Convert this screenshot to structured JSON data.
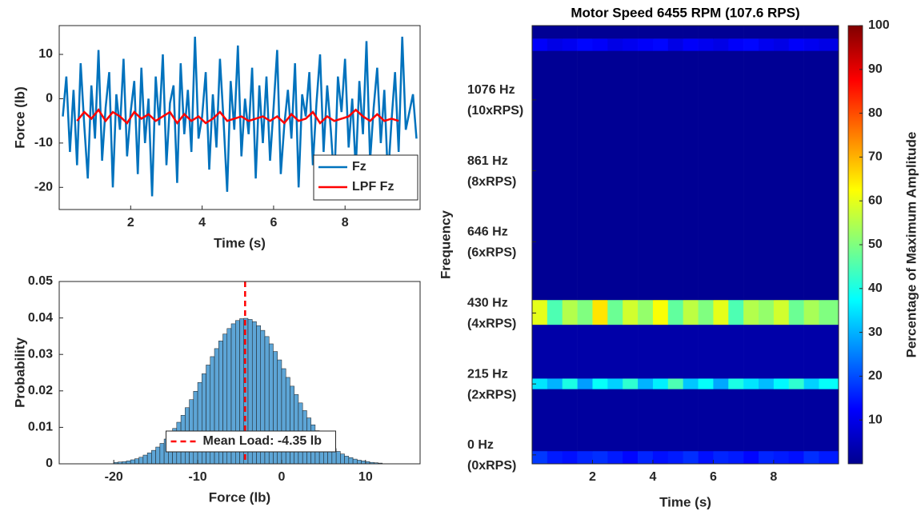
{
  "chart_data": [
    {
      "type": "line",
      "xlabel": "Time (s)",
      "ylabel": "Force (lb)",
      "xlim": [
        0,
        10.1
      ],
      "ylim": [
        -25,
        16.5
      ],
      "xticks": [
        2,
        4,
        6,
        8
      ],
      "yticks": [
        -20,
        -10,
        0,
        10
      ],
      "legend": "lower right",
      "series": [
        {
          "name": "Fz",
          "color": "#0072bd",
          "x": [
            0.1,
            0.2,
            0.3,
            0.4,
            0.5,
            0.6,
            0.7,
            0.8,
            0.9,
            1.0,
            1.1,
            1.2,
            1.3,
            1.4,
            1.5,
            1.6,
            1.7,
            1.8,
            1.9,
            2.0,
            2.1,
            2.2,
            2.3,
            2.4,
            2.5,
            2.6,
            2.7,
            2.8,
            2.9,
            3.0,
            3.1,
            3.2,
            3.3,
            3.4,
            3.5,
            3.6,
            3.7,
            3.8,
            3.9,
            4.0,
            4.1,
            4.2,
            4.3,
            4.4,
            4.5,
            4.6,
            4.7,
            4.8,
            4.9,
            5.0,
            5.1,
            5.2,
            5.3,
            5.4,
            5.5,
            5.6,
            5.7,
            5.8,
            5.9,
            6.0,
            6.1,
            6.2,
            6.3,
            6.4,
            6.5,
            6.6,
            6.7,
            6.8,
            6.9,
            7.0,
            7.1,
            7.2,
            7.3,
            7.4,
            7.5,
            7.6,
            7.7,
            7.8,
            7.9,
            8.0,
            8.1,
            8.2,
            8.3,
            8.4,
            8.5,
            8.6,
            8.7,
            8.8,
            8.9,
            9.0,
            9.1,
            9.2,
            9.3,
            9.4,
            9.5,
            9.6,
            9.7,
            9.8,
            9.9,
            10.0
          ],
          "values": [
            -4,
            5,
            -12,
            2,
            -15,
            8,
            -6,
            -18,
            3,
            -9,
            11,
            -14,
            -2,
            6,
            -20,
            1,
            -7,
            9,
            -13,
            -3,
            4,
            -17,
            7,
            -10,
            0,
            -22,
            5,
            -6,
            10,
            -15,
            -1,
            3,
            -19,
            8,
            -8,
            2,
            -12,
            14,
            -9,
            -4,
            6,
            -16,
            1,
            -11,
            9,
            -5,
            -21,
            4,
            -7,
            12,
            -13,
            0,
            -8,
            7,
            -18,
            3,
            -10,
            5,
            -14,
            -2,
            11,
            -17,
            -6,
            2,
            -9,
            8,
            -20,
            1,
            -4,
            6,
            -15,
            -1,
            10,
            -12,
            3,
            -7,
            -19,
            5,
            -3,
            9,
            -11,
            0,
            -16,
            4,
            -8,
            13,
            -14,
            -2,
            7,
            -10,
            2,
            -18,
            -5,
            6,
            -12,
            14,
            -7,
            -3,
            1,
            -9
          ]
        },
        {
          "name": "LPF Fz",
          "color": "#ff0000",
          "x": [
            0.5,
            0.7,
            0.9,
            1.1,
            1.3,
            1.5,
            1.7,
            1.9,
            2.1,
            2.3,
            2.5,
            2.7,
            2.9,
            3.1,
            3.3,
            3.5,
            3.7,
            3.9,
            4.1,
            4.3,
            4.5,
            4.7,
            4.9,
            5.1,
            5.3,
            5.5,
            5.7,
            5.9,
            6.1,
            6.3,
            6.5,
            6.7,
            6.9,
            7.1,
            7.3,
            7.5,
            7.7,
            7.9,
            8.1,
            8.3,
            8.5,
            8.7,
            8.9,
            9.1,
            9.3,
            9.5
          ],
          "values": [
            -5,
            -3,
            -4.5,
            -2.5,
            -5,
            -3,
            -4,
            -5.5,
            -3,
            -4.5,
            -3.5,
            -5,
            -4,
            -3,
            -5.5,
            -3.5,
            -5,
            -4,
            -5.5,
            -4.5,
            -3,
            -5,
            -4.5,
            -4,
            -5,
            -4.5,
            -4,
            -5,
            -4,
            -5.5,
            -3.5,
            -5,
            -4.5,
            -3,
            -5.5,
            -4,
            -5,
            -4.5,
            -4,
            -2.5,
            -4,
            -5,
            -3.5,
            -5,
            -4.5,
            -5
          ]
        }
      ]
    },
    {
      "type": "histogram",
      "xlabel": "Force (lb)",
      "ylabel": "Probability",
      "color": "#5da5d6",
      "xlim": [
        -26.5,
        16.5
      ],
      "ylim": [
        0,
        0.05
      ],
      "xticks": [
        -20,
        -10,
        0,
        10
      ],
      "yticks": [
        0,
        0.01,
        0.02,
        0.03,
        0.04,
        0.05
      ],
      "bins": [
        -20,
        -19.5,
        -19,
        -18.5,
        -18,
        -17.5,
        -17,
        -16.5,
        -16,
        -15.5,
        -15,
        -14.5,
        -14,
        -13.5,
        -13,
        -12.5,
        -12,
        -11.5,
        -11,
        -10.5,
        -10,
        -9.5,
        -9,
        -8.5,
        -8,
        -7.5,
        -7,
        -6.5,
        -6,
        -5.5,
        -5,
        -4.5,
        -4,
        -3.5,
        -3,
        -2.5,
        -2,
        -1.5,
        -1,
        -0.5,
        0,
        0.5,
        1,
        1.5,
        2,
        2.5,
        3,
        3.5,
        4,
        4.5,
        5,
        5.5,
        6,
        6.5,
        7,
        7.5,
        8,
        8.5,
        9,
        9.5,
        10,
        10.5,
        11,
        11.5,
        12
      ],
      "values": [
        0.0004,
        0.0005,
        0.0006,
        0.0008,
        0.0011,
        0.0014,
        0.0018,
        0.0024,
        0.003,
        0.0037,
        0.0046,
        0.0056,
        0.0068,
        0.0082,
        0.0097,
        0.0114,
        0.0133,
        0.0154,
        0.0176,
        0.0199,
        0.0223,
        0.0247,
        0.0271,
        0.0294,
        0.0316,
        0.0337,
        0.0356,
        0.0371,
        0.0384,
        0.0393,
        0.0398,
        0.0399,
        0.0396,
        0.039,
        0.0379,
        0.0366,
        0.0349,
        0.0329,
        0.0308,
        0.0285,
        0.0261,
        0.0237,
        0.0213,
        0.019,
        0.0167,
        0.0146,
        0.0126,
        0.0107,
        0.0091,
        0.0076,
        0.0063,
        0.0052,
        0.0042,
        0.0034,
        0.0027,
        0.0021,
        0.0017,
        0.0013,
        0.001,
        0.0008,
        0.0006,
        0.0004,
        0.0003,
        0.0002
      ],
      "mean_line": {
        "value": -4.35,
        "label": "Mean Load: -4.35 lb",
        "color": "#ff0000"
      },
      "legend": "lower center"
    },
    {
      "type": "heatmap",
      "title": "Motor Speed 6455 RPM (107.6 RPS)",
      "xlabel": "Time (s)",
      "ylabel": "Frequency",
      "colorbar_label": "Percentage of Maximum Amplitude",
      "colormap": "jet",
      "xlim": [
        0,
        10.15
      ],
      "ylim": [
        -27,
        1301
      ],
      "xticks": [
        2,
        4,
        6,
        8
      ],
      "yticks": [
        {
          "value": 0,
          "label": [
            "0 Hz",
            "(0xRPS)"
          ]
        },
        {
          "value": 215,
          "label": [
            "215 Hz",
            "(2xRPS)"
          ]
        },
        {
          "value": 430,
          "label": [
            "430 Hz",
            "(4xRPS)"
          ]
        },
        {
          "value": 646,
          "label": [
            "646 Hz",
            "(6xRPS)"
          ]
        },
        {
          "value": 861,
          "label": [
            "861 Hz",
            "(8xRPS)"
          ]
        },
        {
          "value": 1076,
          "label": [
            "1076 Hz",
            "(10xRPS)"
          ]
        }
      ],
      "clim": [
        0,
        100
      ],
      "cticks": [
        10,
        20,
        30,
        40,
        50,
        60,
        70,
        80,
        90,
        100
      ],
      "x_bins": [
        0,
        0.5,
        1,
        1.5,
        2,
        2.5,
        3,
        3.5,
        4,
        4.5,
        5,
        5.5,
        6,
        6.5,
        7,
        7.5,
        8,
        8.5,
        9,
        9.5,
        10.15
      ],
      "y_bins": [
        -27,
        12,
        200,
        232,
        395,
        470,
        1225,
        1262,
        1301
      ],
      "z": [
        [
          18,
          15,
          14,
          16,
          17,
          15,
          13,
          16,
          14,
          15,
          17,
          14,
          16,
          15,
          13,
          16,
          15,
          14,
          17,
          15
        ],
        [
          3,
          3,
          3,
          3,
          3,
          3,
          3,
          3,
          3,
          3,
          3,
          3,
          3,
          3,
          3,
          3,
          3,
          3,
          3,
          3
        ],
        [
          35,
          30,
          40,
          28,
          38,
          33,
          42,
          30,
          36,
          45,
          32,
          38,
          29,
          40,
          35,
          31,
          37,
          42,
          33,
          38
        ],
        [
          4,
          4,
          4,
          4,
          4,
          4,
          4,
          4,
          4,
          4,
          4,
          4,
          4,
          4,
          4,
          4,
          4,
          4,
          4,
          4
        ],
        [
          60,
          45,
          55,
          50,
          65,
          48,
          58,
          52,
          62,
          47,
          56,
          50,
          60,
          45,
          55,
          52,
          58,
          48,
          54,
          50
        ],
        [
          2,
          2,
          2,
          2,
          2,
          2,
          2,
          2,
          2,
          2,
          2,
          2,
          2,
          2,
          2,
          2,
          2,
          2,
          2,
          2
        ],
        [
          12,
          10,
          11,
          13,
          12,
          10,
          11,
          12,
          13,
          10,
          12,
          11,
          10,
          12,
          13,
          11,
          10,
          12,
          11,
          10
        ],
        [
          2,
          2,
          2,
          2,
          2,
          2,
          2,
          2,
          2,
          2,
          2,
          2,
          2,
          2,
          2,
          2,
          2,
          2,
          2,
          2
        ]
      ]
    }
  ]
}
